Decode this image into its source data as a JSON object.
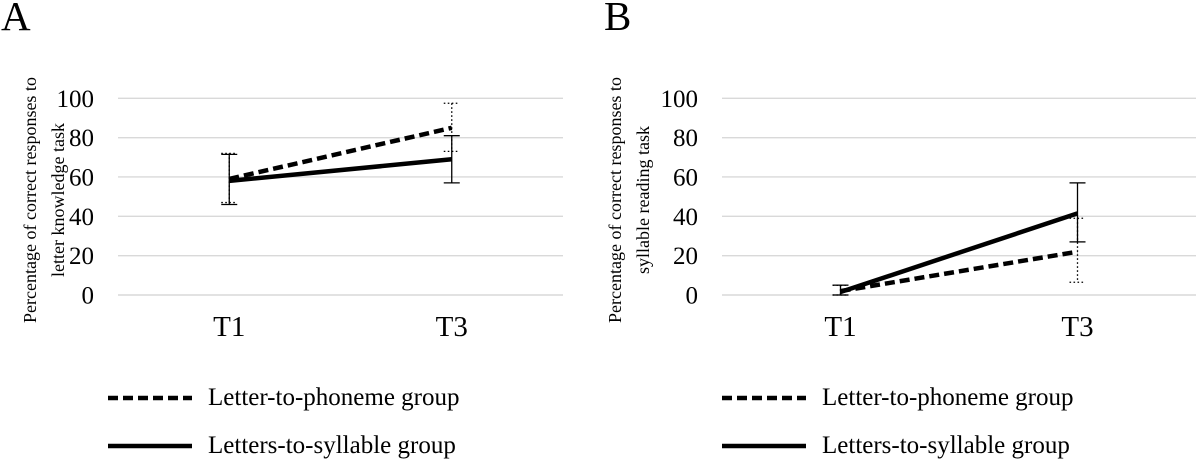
{
  "figure": {
    "background": "#ffffff",
    "text_color": "#000000"
  },
  "chart_data": [
    {
      "type": "line",
      "panel_label": "A",
      "ylabel_lines": [
        "Percentage of correct responses to",
        "letter knowledge task"
      ],
      "categories": [
        "T1",
        "T3"
      ],
      "ylim": [
        0,
        100
      ],
      "yticks": [
        0,
        20,
        40,
        60,
        80,
        100
      ],
      "grid": true,
      "grid_color": "#d9d9d9",
      "line_color": "#000000",
      "legend_position": "below",
      "series": [
        {
          "name": "Letter-to-phoneme group",
          "line_style": "dashed",
          "error_style": "dotted",
          "values": [
            59,
            85
          ],
          "error_low": [
            47,
            73
          ],
          "error_high": [
            72,
            97.5
          ]
        },
        {
          "name": "Letters-to-syllable group",
          "line_style": "solid",
          "error_style": "solid",
          "values": [
            58,
            69
          ],
          "error_low": [
            46,
            57
          ],
          "error_high": [
            71.5,
            81
          ]
        }
      ]
    },
    {
      "type": "line",
      "panel_label": "B",
      "ylabel_lines": [
        "Percentage of correct responses to",
        "syllable reading task"
      ],
      "categories": [
        "T1",
        "T3"
      ],
      "ylim": [
        0,
        100
      ],
      "yticks": [
        0,
        20,
        40,
        60,
        80,
        100
      ],
      "grid": true,
      "grid_color": "#d9d9d9",
      "line_color": "#000000",
      "legend_position": "below",
      "series": [
        {
          "name": "Letter-to-phoneme group",
          "line_style": "dashed",
          "error_style": "dotted",
          "values": [
            2,
            22
          ],
          "error_low": [
            0,
            6.5
          ],
          "error_high": [
            5,
            39
          ]
        },
        {
          "name": "Letters-to-syllable group",
          "line_style": "solid",
          "error_style": "solid",
          "values": [
            1.5,
            41.5
          ],
          "error_low": [
            0,
            27
          ],
          "error_high": [
            5,
            57
          ]
        }
      ]
    }
  ]
}
